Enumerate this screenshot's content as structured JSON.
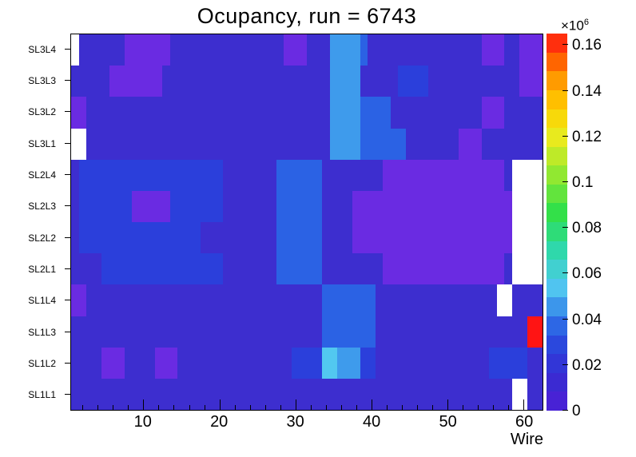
{
  "chart_data": {
    "type": "heatmap",
    "title": "Ocupancy, run = 6743",
    "xlabel": "Wire",
    "scale_mantissa": "×10",
    "scale_exponent": "6",
    "x_range": [
      1,
      62
    ],
    "x_ticks": [
      10,
      20,
      30,
      40,
      50,
      60
    ],
    "x_minor_step": 2,
    "y_categories_top_to_bottom": [
      "SL3L4",
      "SL3L3",
      "SL3L2",
      "SL3L1",
      "SL2L4",
      "SL2L3",
      "SL2L2",
      "SL2L1",
      "SL1L4",
      "SL1L3",
      "SL1L2",
      "SL1L1"
    ],
    "z_values_unit": "hits x10^3 (colorbar axis shown x10^6); null = empty bin drawn white",
    "z_axis_max": 165,
    "rows": [
      {
        "label": "SL3L4",
        "runs": [
          [
            1,
            null
          ],
          [
            6,
            13
          ],
          [
            6,
            6
          ],
          [
            15,
            13
          ],
          [
            3,
            6
          ],
          [
            3,
            13
          ],
          [
            4,
            42
          ],
          [
            1,
            30
          ],
          [
            15,
            13
          ],
          [
            3,
            6
          ],
          [
            2,
            13
          ],
          [
            3,
            6
          ]
        ]
      },
      {
        "label": "SL3L3",
        "runs": [
          [
            5,
            13
          ],
          [
            7,
            6
          ],
          [
            22,
            13
          ],
          [
            4,
            42
          ],
          [
            5,
            13
          ],
          [
            4,
            20
          ],
          [
            12,
            13
          ],
          [
            3,
            6
          ]
        ]
      },
      {
        "label": "SL3L2",
        "runs": [
          [
            2,
            6
          ],
          [
            32,
            13
          ],
          [
            4,
            42
          ],
          [
            4,
            30
          ],
          [
            12,
            13
          ],
          [
            3,
            6
          ],
          [
            5,
            13
          ]
        ]
      },
      {
        "label": "SL3L1",
        "runs": [
          [
            2,
            null
          ],
          [
            32,
            13
          ],
          [
            4,
            42
          ],
          [
            6,
            30
          ],
          [
            7,
            13
          ],
          [
            3,
            6
          ],
          [
            8,
            13
          ]
        ]
      },
      {
        "label": "SL2L4",
        "runs": [
          [
            1,
            13
          ],
          [
            19,
            20
          ],
          [
            7,
            13
          ],
          [
            6,
            30
          ],
          [
            8,
            13
          ],
          [
            16,
            6
          ],
          [
            1,
            13
          ],
          [
            4,
            null
          ]
        ]
      },
      {
        "label": "SL2L3",
        "runs": [
          [
            1,
            13
          ],
          [
            7,
            20
          ],
          [
            5,
            6
          ],
          [
            7,
            20
          ],
          [
            7,
            13
          ],
          [
            6,
            30
          ],
          [
            4,
            13
          ],
          [
            21,
            6
          ],
          [
            4,
            null
          ]
        ]
      },
      {
        "label": "SL2L2",
        "runs": [
          [
            1,
            13
          ],
          [
            16,
            20
          ],
          [
            10,
            13
          ],
          [
            6,
            30
          ],
          [
            4,
            13
          ],
          [
            21,
            6
          ],
          [
            4,
            null
          ]
        ]
      },
      {
        "label": "SL2L1",
        "runs": [
          [
            4,
            13
          ],
          [
            16,
            20
          ],
          [
            7,
            13
          ],
          [
            6,
            30
          ],
          [
            8,
            13
          ],
          [
            16,
            6
          ],
          [
            1,
            13
          ],
          [
            4,
            null
          ]
        ]
      },
      {
        "label": "SL1L4",
        "runs": [
          [
            2,
            6
          ],
          [
            31,
            13
          ],
          [
            7,
            30
          ],
          [
            16,
            13
          ],
          [
            2,
            null
          ],
          [
            4,
            13
          ]
        ]
      },
      {
        "label": "SL1L3",
        "runs": [
          [
            33,
            13
          ],
          [
            7,
            30
          ],
          [
            20,
            13
          ],
          [
            2,
            165
          ]
        ]
      },
      {
        "label": "SL1L2",
        "runs": [
          [
            4,
            13
          ],
          [
            3,
            6
          ],
          [
            4,
            13
          ],
          [
            3,
            6
          ],
          [
            15,
            13
          ],
          [
            4,
            20
          ],
          [
            2,
            52
          ],
          [
            3,
            42
          ],
          [
            2,
            20
          ],
          [
            15,
            13
          ],
          [
            5,
            20
          ],
          [
            2,
            13
          ]
        ]
      },
      {
        "label": "SL1L1",
        "runs": [
          [
            58,
            13
          ],
          [
            2,
            null
          ],
          [
            2,
            13
          ]
        ]
      }
    ],
    "value_colors": [
      {
        "max": 9,
        "color": "#6A2BE2"
      },
      {
        "max": 17,
        "color": "#3D2ECF"
      },
      {
        "max": 25,
        "color": "#2B3FDB"
      },
      {
        "max": 36,
        "color": "#2B62E4"
      },
      {
        "max": 47,
        "color": "#3E9BEC"
      },
      {
        "max": 70,
        "color": "#52C8F0"
      },
      {
        "max": 100,
        "color": "#35E060"
      },
      {
        "max": 130,
        "color": "#D8EC28"
      },
      {
        "max": 150,
        "color": "#FF9000"
      },
      {
        "max": 99999,
        "color": "#FF1414"
      }
    ],
    "colorbar": {
      "max": 0.165,
      "segments": 20,
      "ticks": [
        {
          "label": "0",
          "value": 0
        },
        {
          "label": "0.02",
          "value": 0.02
        },
        {
          "label": "0.04",
          "value": 0.04
        },
        {
          "label": "0.06",
          "value": 0.06
        },
        {
          "label": "0.08",
          "value": 0.08
        },
        {
          "label": "0.1",
          "value": 0.1
        },
        {
          "label": "0.12",
          "value": 0.12
        },
        {
          "label": "0.14",
          "value": 0.14
        },
        {
          "label": "0.16",
          "value": 0.16
        }
      ],
      "stops": [
        [
          0,
          "#4F1ED6"
        ],
        [
          0.08,
          "#3A2BD2"
        ],
        [
          0.16,
          "#2B3FDB"
        ],
        [
          0.22,
          "#2B62E4"
        ],
        [
          0.28,
          "#3E9BEC"
        ],
        [
          0.33,
          "#52C8F0"
        ],
        [
          0.42,
          "#2FD8B0"
        ],
        [
          0.52,
          "#2EE04A"
        ],
        [
          0.62,
          "#8CE832"
        ],
        [
          0.72,
          "#E6EC20"
        ],
        [
          0.8,
          "#FFD000"
        ],
        [
          0.87,
          "#FFA000"
        ],
        [
          0.93,
          "#FF6000"
        ],
        [
          1,
          "#FF1414"
        ]
      ]
    }
  }
}
